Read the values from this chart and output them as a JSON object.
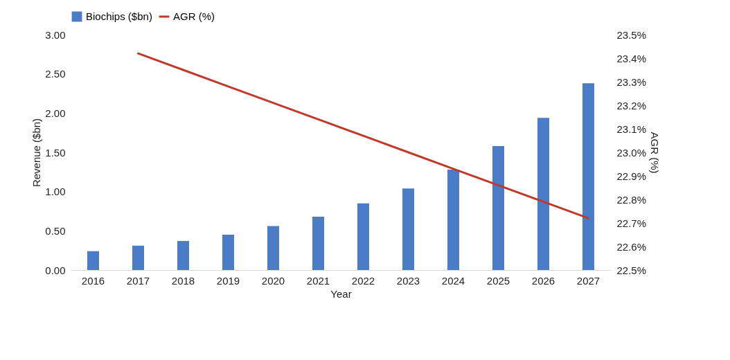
{
  "chart_data": {
    "type": "bar",
    "categories": [
      "2016",
      "2017",
      "2018",
      "2019",
      "2020",
      "2021",
      "2022",
      "2023",
      "2024",
      "2025",
      "2026",
      "2027"
    ],
    "series": [
      {
        "name": "Biochips ($bn)",
        "color": "#4a7cc7",
        "values": [
          0.24,
          0.31,
          0.37,
          0.45,
          0.56,
          0.68,
          0.85,
          1.04,
          1.28,
          1.58,
          1.94,
          2.38
        ]
      },
      {
        "name": "AGR (%)",
        "type": "line",
        "axis": "y2",
        "color": "#c0392b",
        "values": [
          null,
          23.42,
          23.35,
          23.28,
          23.21,
          23.14,
          23.07,
          23.0,
          22.93,
          22.86,
          22.79,
          22.72
        ]
      }
    ],
    "xlabel": "Year",
    "ylabel": "Revenue ($bn)",
    "y2label": "AGR (%)",
    "ylim": [
      0,
      3
    ],
    "yticks": [
      {
        "value": 0,
        "label": "0.00"
      },
      {
        "value": 0.5,
        "label": "0.50"
      },
      {
        "value": 1,
        "label": "1.00"
      },
      {
        "value": 1.5,
        "label": "1.50"
      },
      {
        "value": 2,
        "label": "2.00"
      },
      {
        "value": 2.5,
        "label": "2.50"
      },
      {
        "value": 3,
        "label": "3.00"
      }
    ],
    "y2lim": [
      22.5,
      23.5
    ],
    "y2ticks": [
      {
        "value": 22.5,
        "label": "22.5%"
      },
      {
        "value": 22.6,
        "label": "22.6%"
      },
      {
        "value": 22.7,
        "label": "22.7%"
      },
      {
        "value": 22.8,
        "label": "22.8%"
      },
      {
        "value": 22.9,
        "label": "22.9%"
      },
      {
        "value": 23.0,
        "label": "23.0%"
      },
      {
        "value": 23.1,
        "label": "23.1%"
      },
      {
        "value": 23.2,
        "label": "23.2%"
      },
      {
        "value": 23.3,
        "label": "23.3%"
      },
      {
        "value": 23.4,
        "label": "23.4%"
      },
      {
        "value": 23.5,
        "label": "23.5%"
      }
    ],
    "legend": "top",
    "grid": false
  }
}
